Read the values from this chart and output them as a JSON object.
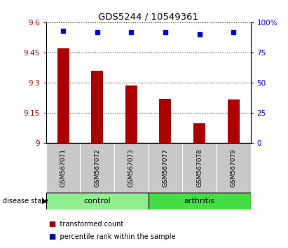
{
  "title": "GDS5244 / 10549361",
  "samples": [
    "GSM567071",
    "GSM567072",
    "GSM567073",
    "GSM567077",
    "GSM567078",
    "GSM567079"
  ],
  "bar_values": [
    9.47,
    9.36,
    9.285,
    9.22,
    9.1,
    9.215
  ],
  "percentile_values": [
    93,
    92,
    92,
    92,
    90,
    92
  ],
  "y_min": 9.0,
  "y_max": 9.6,
  "y_ticks": [
    9.0,
    9.15,
    9.3,
    9.45,
    9.6
  ],
  "y_tick_labels": [
    "9",
    "9.15",
    "9.3",
    "9.45",
    "9.6"
  ],
  "right_y_ticks": [
    0,
    25,
    50,
    75,
    100
  ],
  "right_y_tick_labels": [
    "0",
    "25",
    "50",
    "75",
    "100%"
  ],
  "bar_color": "#AA0000",
  "dot_color": "#0000CC",
  "control_color": "#90EE90",
  "arthritis_color": "#44DD44",
  "sample_bg_color": "#C8C8C8",
  "control_indices": [
    0,
    1,
    2
  ],
  "arthritis_indices": [
    3,
    4,
    5
  ],
  "legend_labels": [
    "transformed count",
    "percentile rank within the sample"
  ]
}
